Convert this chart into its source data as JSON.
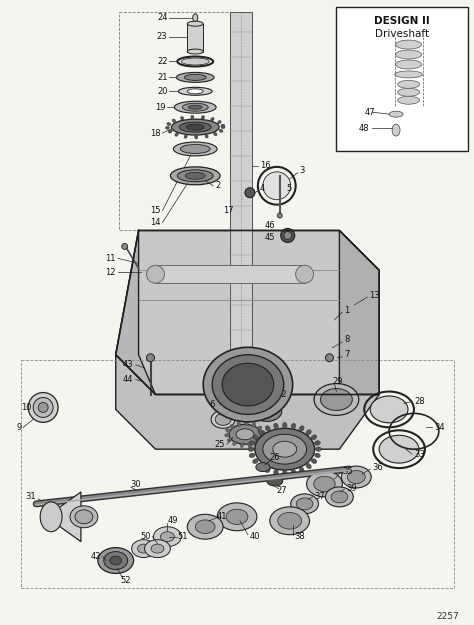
{
  "bg_color": "#f5f5f0",
  "diagram_id": "2257",
  "inset_title_line1": "DESIGN II",
  "inset_title_line2": "Driveshaft",
  "figsize": [
    4.74,
    6.25
  ],
  "dpi": 100,
  "line_color": "#222222",
  "part_color": "#888888",
  "part_fill": "#cccccc",
  "label_fontsize": 6.0,
  "label_color": "#111111"
}
